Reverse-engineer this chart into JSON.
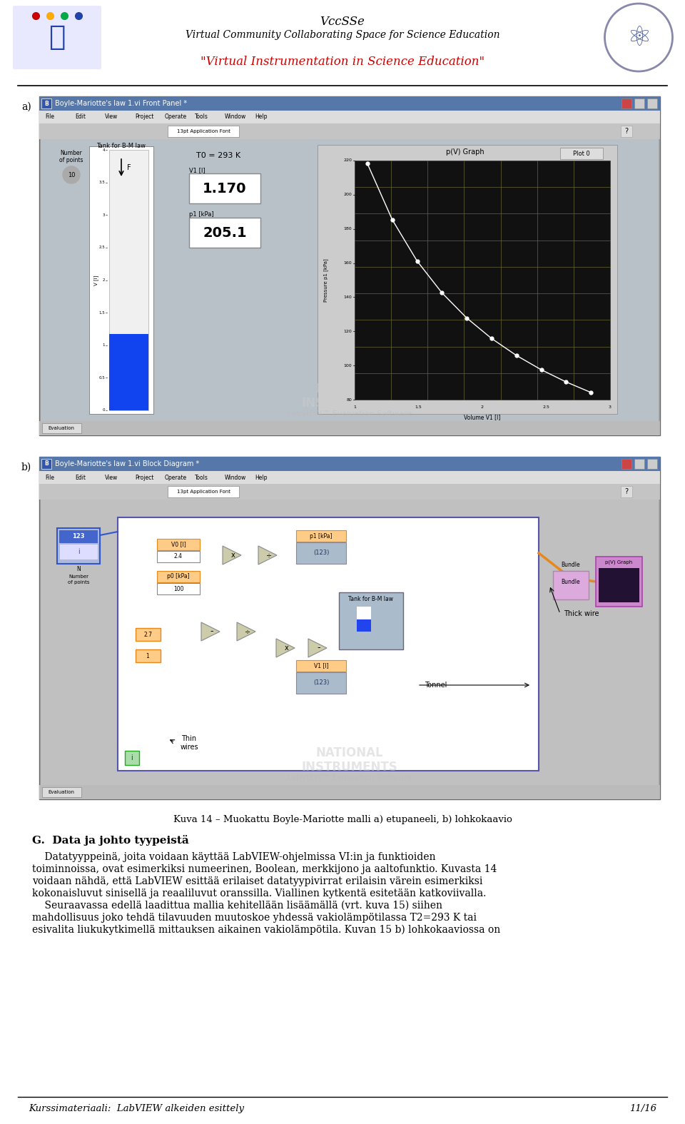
{
  "page_width": 9.6,
  "page_height": 15.75,
  "bg_color": "#ffffff",
  "header_title": "VccSSe",
  "header_subtitle": "Virtual Community Collaborating Space for Science Education",
  "header_tagline": "\"Virtual Instrumentation in Science Education\"",
  "header_title_fs": 12,
  "header_subtitle_fs": 10,
  "header_tagline_fs": 12,
  "header_tagline_color": "#cc0000",
  "figure_label_a": "a)",
  "figure_label_b": "b)",
  "caption": "Kuva 14 – Muokattu Boyle-Mariotte malli a) etupaneeli, b) lohkokaavio",
  "caption_fs": 9.5,
  "section_title": "G.  Data ja johto tyypeistä",
  "section_title_fs": 11,
  "body_lines": [
    "    Datatyyppeinä, joita voidaan käyttää LabVIEW-ohjelmissa VI:in ja funktioiden",
    "toiminnoissa, ovat esimerkiksi numeerinen, Boolean, merkkijono ja aaltofunktio. Kuvasta 14",
    "voidaan nähdä, että LabVIEW esittää erilaiset datatyypivirrat erilaisin värein esimerkiksi",
    "kokonaisluvut sinisellä ja reaaliluvut oranssilla. Viallinen kytkentä esitetään katkoviivalla.",
    "    Seuraavassa edellä laadittua mallia kehitellään lisäämällä (vrt. kuva 15) siihen",
    "mahdollisuus joko tehdä tilavuuden muutoskoe yhdessä vakiolämpötilassa T2=293 K tai",
    "esivalita liukukytkimellä mittauksen aikainen vakiolämpötila. Kuvan 15 b) lohkokaaviossa on"
  ],
  "body_fs": 10,
  "footer_left": "Kurssimateriaali:  LabVIEW alkeiden esittely",
  "footer_right": "11/16",
  "footer_fs": 9.5,
  "win_title_color": "#6688bb",
  "win_title_dark": "#3a5a8a",
  "menu_bg": "#dcdcdc",
  "toolbar_bg": "#c8c8c8",
  "content_bg_a": "#b8c0c8",
  "content_bg_b": "#c0c0c0",
  "graph_dark_bg": "#1a1a1a",
  "orange_wire": "#e8881a",
  "blue_wire": "#3355cc",
  "menu_items": [
    "File",
    "Edit",
    "View",
    "Project",
    "Operate",
    "Tools",
    "Window",
    "Help"
  ]
}
